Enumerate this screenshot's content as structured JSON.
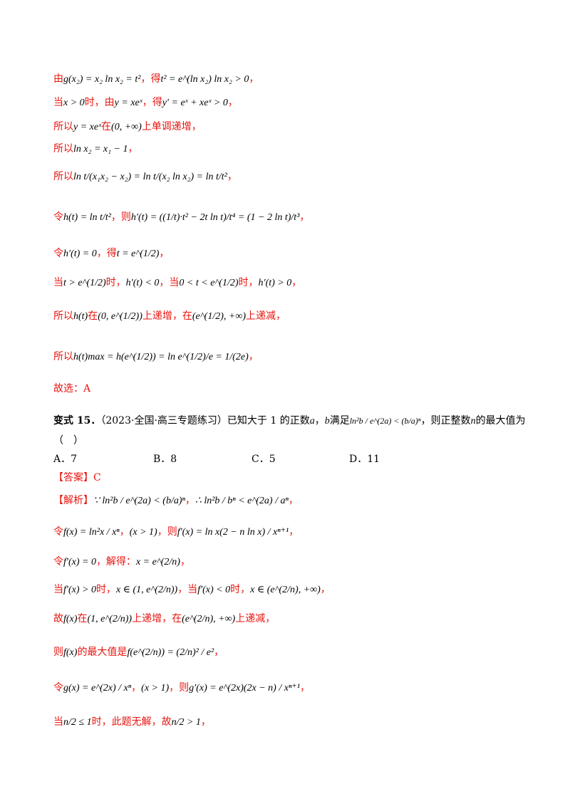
{
  "lines": [
    {
      "pre": "由",
      "math": "g(x₂) = x₂ ln x₂ = t²",
      "mid": "，得",
      "math2": "t² = e^(ln x₂) ln x₂ > 0",
      "post": "，"
    },
    {
      "pre": "当",
      "math": "x > 0",
      "mid": "时，由",
      "math2": "y = xeˣ",
      "mid2": "，得",
      "math3": "y′ = eˣ + xeˣ > 0",
      "post": "，"
    },
    {
      "pre": "所以",
      "math": "y = xeˣ",
      "mid": "在",
      "math2": "(0, +∞)",
      "post": "上单调递增，"
    },
    {
      "pre": "所以",
      "math": "ln x₂ = x₁ − 1",
      "post": "，"
    },
    {
      "pre": "所以",
      "math": "ln t/(x₁x₂ − x₂) = ln t/(x₂ ln x₂) = ln t/t²",
      "post": "，"
    },
    {
      "pre": "令",
      "math": "h(t) = ln t/t²",
      "mid": "，则",
      "math2": "h′(t) = ((1/t)·t² − 2t ln t)/t⁴ = (1 − 2 ln t)/t³",
      "post": "，"
    },
    {
      "pre": "令",
      "math": "h′(t) = 0",
      "mid": "，得",
      "math2": "t = e^(1/2)",
      "post": "，"
    },
    {
      "pre": "当",
      "math": "t > e^(1/2)",
      "mid": "时，",
      "math2": "h′(t) < 0",
      "mid2": "，当",
      "math3": "0 < t < e^(1/2)",
      "mid3": "时，",
      "math4": "h′(t) > 0",
      "post": "，"
    },
    {
      "pre": "所以",
      "math": "h(t)",
      "mid": "在",
      "math2": "(0, e^(1/2))",
      "mid2": "上递增，在",
      "math3": "(e^(1/2), +∞)",
      "post": "上递减，"
    },
    {
      "pre": "所以",
      "math": "h(t)max = h(e^(1/2)) = ln e^(1/2)/e = 1/(2e)",
      "post": "，"
    },
    {
      "pre": "故选：A"
    }
  ],
  "problem": {
    "label": "变式 15．",
    "text": "（2023·全国·高三专题练习）已知大于 1 的正数",
    "a": "a",
    "sep": "，",
    "b": "b",
    "text2": "满足",
    "cond": "ln²b / e^(2a) < (b/a)ⁿ",
    "text3": "，则正整数",
    "n": "n",
    "text4": "的最大值为",
    "paren": "（　）"
  },
  "options": [
    {
      "label": "A．7"
    },
    {
      "label": "B．8"
    },
    {
      "label": "C．5"
    },
    {
      "label": "D．11"
    }
  ],
  "answer": "【答案】C",
  "analysis_label": "【解析】",
  "sol": [
    {
      "math": "∵ ln²b / e^(2a) < (b/a)ⁿ",
      "mid": "，",
      "math2": "∴ ln²b / bⁿ < e^(2a) / aⁿ",
      "post": "，"
    },
    {
      "pre": "令",
      "math": "f(x) = ln²x / xⁿ",
      "mid": "，",
      "math2": "(x > 1)",
      "mid2": "，则",
      "math3": "f′(x) = ln x(2 − n ln x) / xⁿ⁺¹",
      "post": "，"
    },
    {
      "pre": "令",
      "math": "f′(x) = 0",
      "mid": "，解得：",
      "math2": "x = e^(2/n)",
      "post": "，"
    },
    {
      "pre": "当",
      "math": "f′(x) > 0",
      "mid": "时，",
      "math2": "x ∈ (1, e^(2/n))",
      "mid2": "，当",
      "math3": "f′(x) < 0",
      "mid3": "时，",
      "math4": "x ∈ (e^(2/n), +∞)",
      "post": "，"
    },
    {
      "pre": "故",
      "math": "f(x)",
      "mid": "在",
      "math2": "(1, e^(2/n))",
      "mid2": "上递增，在",
      "math3": "(e^(2/n),   +∞)",
      "post": "上递减，"
    },
    {
      "pre": "则",
      "math": "f(x)",
      "mid": "的最大值是",
      "math2": "f(e^(2/n)) = (2/n)² / e²",
      "post": "，"
    },
    {
      "pre": "令",
      "math": "g(x) = e^(2x) / xⁿ",
      "mid": "，",
      "math2": "(x > 1)",
      "mid2": "，则",
      "math3": "g′(x) = e^(2x)(2x − n) / xⁿ⁺¹",
      "post": "，"
    },
    {
      "pre": "当",
      "math": "n/2 ≤ 1",
      "mid": "时，此题无解，故",
      "math2": "n/2 > 1",
      "post": "，"
    }
  ]
}
